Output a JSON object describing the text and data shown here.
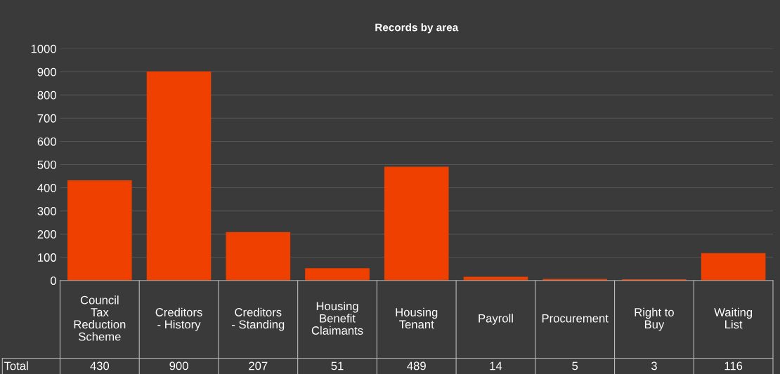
{
  "chart_data": {
    "type": "bar",
    "title": "Records by area",
    "categories": [
      "Council Tax Reduction Scheme",
      "Creditors - History",
      "Creditors - Standing",
      "Housing Benefit Claimants",
      "Housing Tenant",
      "Payroll",
      "Procurement",
      "Right to Buy",
      "Waiting List"
    ],
    "series": [
      {
        "name": "Total",
        "color": "#f04000",
        "values": [
          430,
          900,
          207,
          51,
          489,
          14,
          5,
          3,
          116
        ]
      }
    ],
    "ylim": [
      0,
      1000
    ],
    "yticks": [
      0,
      100,
      200,
      300,
      400,
      500,
      600,
      700,
      800,
      900,
      1000
    ],
    "grid": "y",
    "data_labels": true
  }
}
